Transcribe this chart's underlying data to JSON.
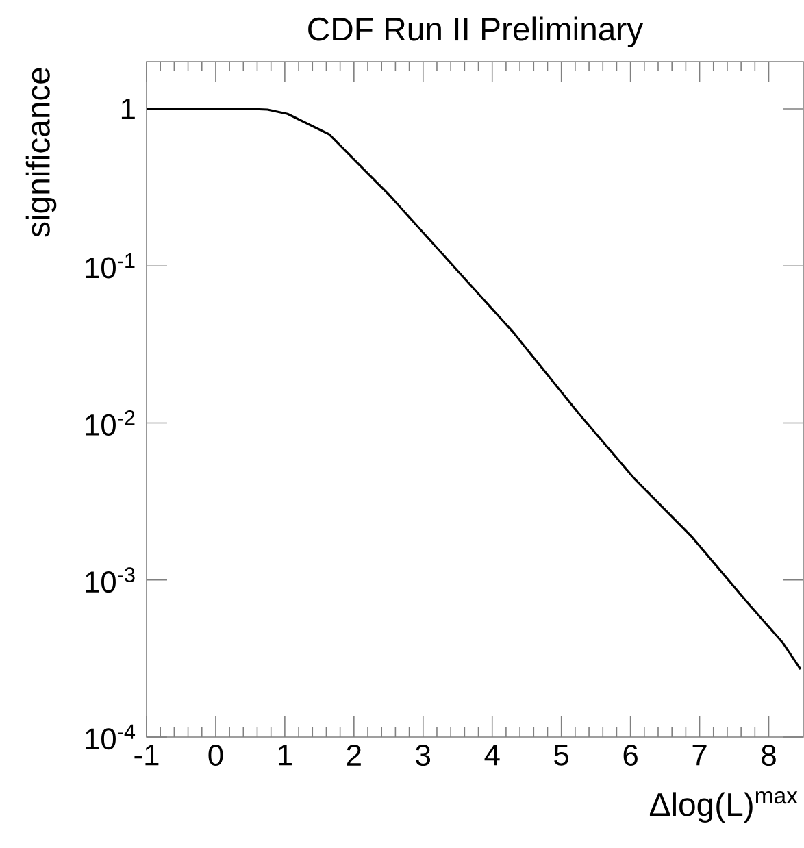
{
  "chart_data": {
    "type": "line",
    "title": "CDF Run II Preliminary",
    "xlabel": "Δlog(L)$^{max}$",
    "ylabel": "significance",
    "x": [
      -1,
      0,
      0.5,
      0.75,
      1.04,
      1.64,
      2.52,
      3.55,
      4.3,
      5.25,
      6.06,
      6.88,
      7.69,
      8.2,
      8.46
    ],
    "series": [
      {
        "color": "#000000",
        "values": [
          1,
          1,
          1,
          0.99,
          0.93,
          0.69,
          0.28,
          0.088,
          0.038,
          0.0115,
          0.0044,
          0.0019,
          0.00072,
          0.0004,
          0.00027
        ]
      }
    ],
    "xlim": [
      -1,
      8.5
    ],
    "xticks": [
      -1,
      0,
      1,
      2,
      3,
      4,
      5,
      6,
      7,
      8
    ],
    "ylim": [
      0.0001,
      2
    ],
    "yticks": [
      {
        "value": 0.0001,
        "label": "10$^{-4}$"
      },
      {
        "value": 0.001,
        "label": "10$^{-3}$"
      },
      {
        "value": 0.01,
        "label": "10$^{-2}$"
      },
      {
        "value": 0.1,
        "label": "10$^{-1}$"
      },
      1
    ],
    "log": true,
    "grid": false,
    "marker": "none",
    "line_style": "solid"
  }
}
